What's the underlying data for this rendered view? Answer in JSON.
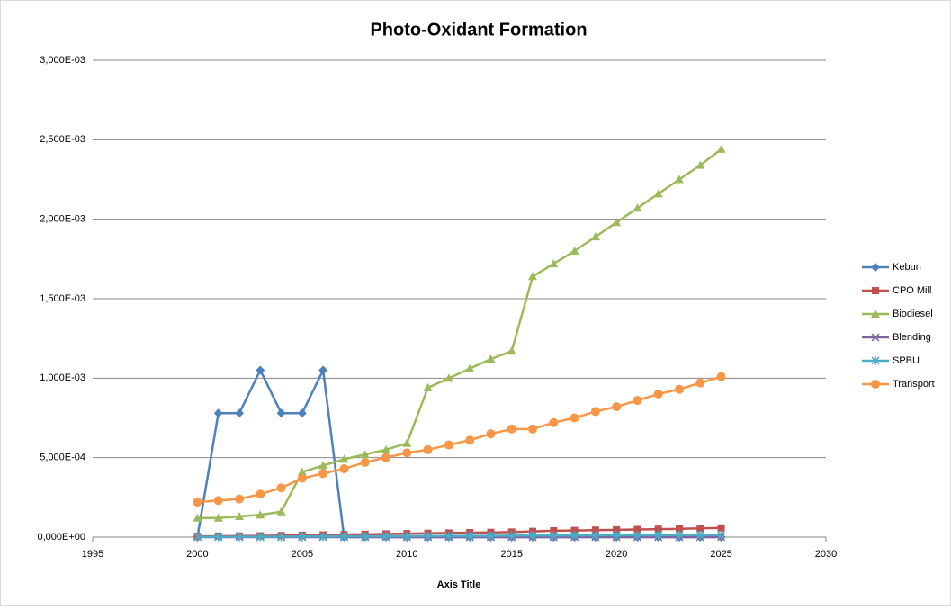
{
  "chart_data": {
    "type": "line",
    "title": "Photo-Oxidant Formation",
    "x_label": "Axis Title",
    "x": [
      2000,
      2001,
      2002,
      2003,
      2004,
      2005,
      2006,
      2007,
      2008,
      2009,
      2010,
      2011,
      2012,
      2013,
      2014,
      2015,
      2016,
      2017,
      2018,
      2019,
      2020,
      2021,
      2022,
      2023,
      2024,
      2025
    ],
    "xlim": [
      1995,
      2030
    ],
    "xticks": [
      1995,
      2000,
      2005,
      2010,
      2015,
      2020,
      2025,
      2030
    ],
    "ylim": [
      0,
      0.003
    ],
    "yticks": [
      {
        "value": 0,
        "label": "0,000E+00"
      },
      {
        "value": 0.0005,
        "label": "5,000E-04"
      },
      {
        "value": 0.001,
        "label": "1,000E-03"
      },
      {
        "value": 0.0015,
        "label": "1,500E-03"
      },
      {
        "value": 0.002,
        "label": "2,000E-03"
      },
      {
        "value": 0.0025,
        "label": "2,500E-03"
      },
      {
        "value": 0.003,
        "label": "3,000E-03"
      }
    ],
    "grid": true,
    "legend": "right",
    "series": [
      {
        "name": "Kebun",
        "color": "#4f81bd",
        "marker": "diamond",
        "values": [
          0,
          0.00078,
          0.00078,
          0.00105,
          0.00078,
          0.00078,
          0.00105,
          0,
          0,
          0,
          0,
          0,
          0,
          0,
          0,
          0,
          0,
          0,
          0,
          0,
          0,
          0,
          0,
          0,
          0,
          0
        ]
      },
      {
        "name": "CPO Mill",
        "color": "#c0504d",
        "marker": "square",
        "values": [
          5e-06,
          6e-06,
          7e-06,
          8e-06,
          1e-05,
          1.2e-05,
          1.4e-05,
          1.6e-05,
          1.8e-05,
          2e-05,
          2.2e-05,
          2.4e-05,
          2.6e-05,
          2.8e-05,
          3e-05,
          3.2e-05,
          3.6e-05,
          4e-05,
          4.2e-05,
          4.4e-05,
          4.6e-05,
          4.8e-05,
          5e-05,
          5.2e-05,
          5.5e-05,
          5.8e-05
        ]
      },
      {
        "name": "Biodiesel",
        "color": "#9bbb59",
        "marker": "triangle",
        "values": [
          0.00012,
          0.00012,
          0.00013,
          0.00014,
          0.00016,
          0.00041,
          0.00045,
          0.00049,
          0.00052,
          0.00055,
          0.00059,
          0.00094,
          0.001,
          0.00106,
          0.00112,
          0.00117,
          0.00164,
          0.00172,
          0.0018,
          0.00189,
          0.00198,
          0.00207,
          0.00216,
          0.00225,
          0.00234,
          0.00244
        ]
      },
      {
        "name": "Blending",
        "color": "#8064a2",
        "marker": "x",
        "values": [
          0,
          0,
          0,
          0,
          0,
          0,
          0,
          0,
          0,
          0,
          0,
          0,
          0,
          0,
          0,
          0,
          0,
          0,
          0,
          0,
          0,
          0,
          0,
          0,
          0,
          0
        ]
      },
      {
        "name": "SPBU",
        "color": "#4bacc6",
        "marker": "star",
        "values": [
          2e-06,
          2e-06,
          2e-06,
          3e-06,
          3e-06,
          4e-06,
          4e-06,
          5e-06,
          5e-06,
          6e-06,
          6e-06,
          7e-06,
          7e-06,
          8e-06,
          8e-06,
          9e-06,
          1e-05,
          1e-05,
          1.1e-05,
          1.1e-05,
          1.2e-05,
          1.2e-05,
          1.3e-05,
          1.3e-05,
          1.4e-05,
          1.4e-05
        ]
      },
      {
        "name": "Transport",
        "color": "#f79646",
        "marker": "circle",
        "values": [
          0.00022,
          0.00023,
          0.00024,
          0.00027,
          0.00031,
          0.00037,
          0.0004,
          0.00043,
          0.00047,
          0.0005,
          0.00053,
          0.00055,
          0.00058,
          0.00061,
          0.00065,
          0.00068,
          0.00068,
          0.00072,
          0.00075,
          0.00079,
          0.00082,
          0.00086,
          0.0009,
          0.00093,
          0.00097,
          0.00101
        ]
      }
    ]
  }
}
